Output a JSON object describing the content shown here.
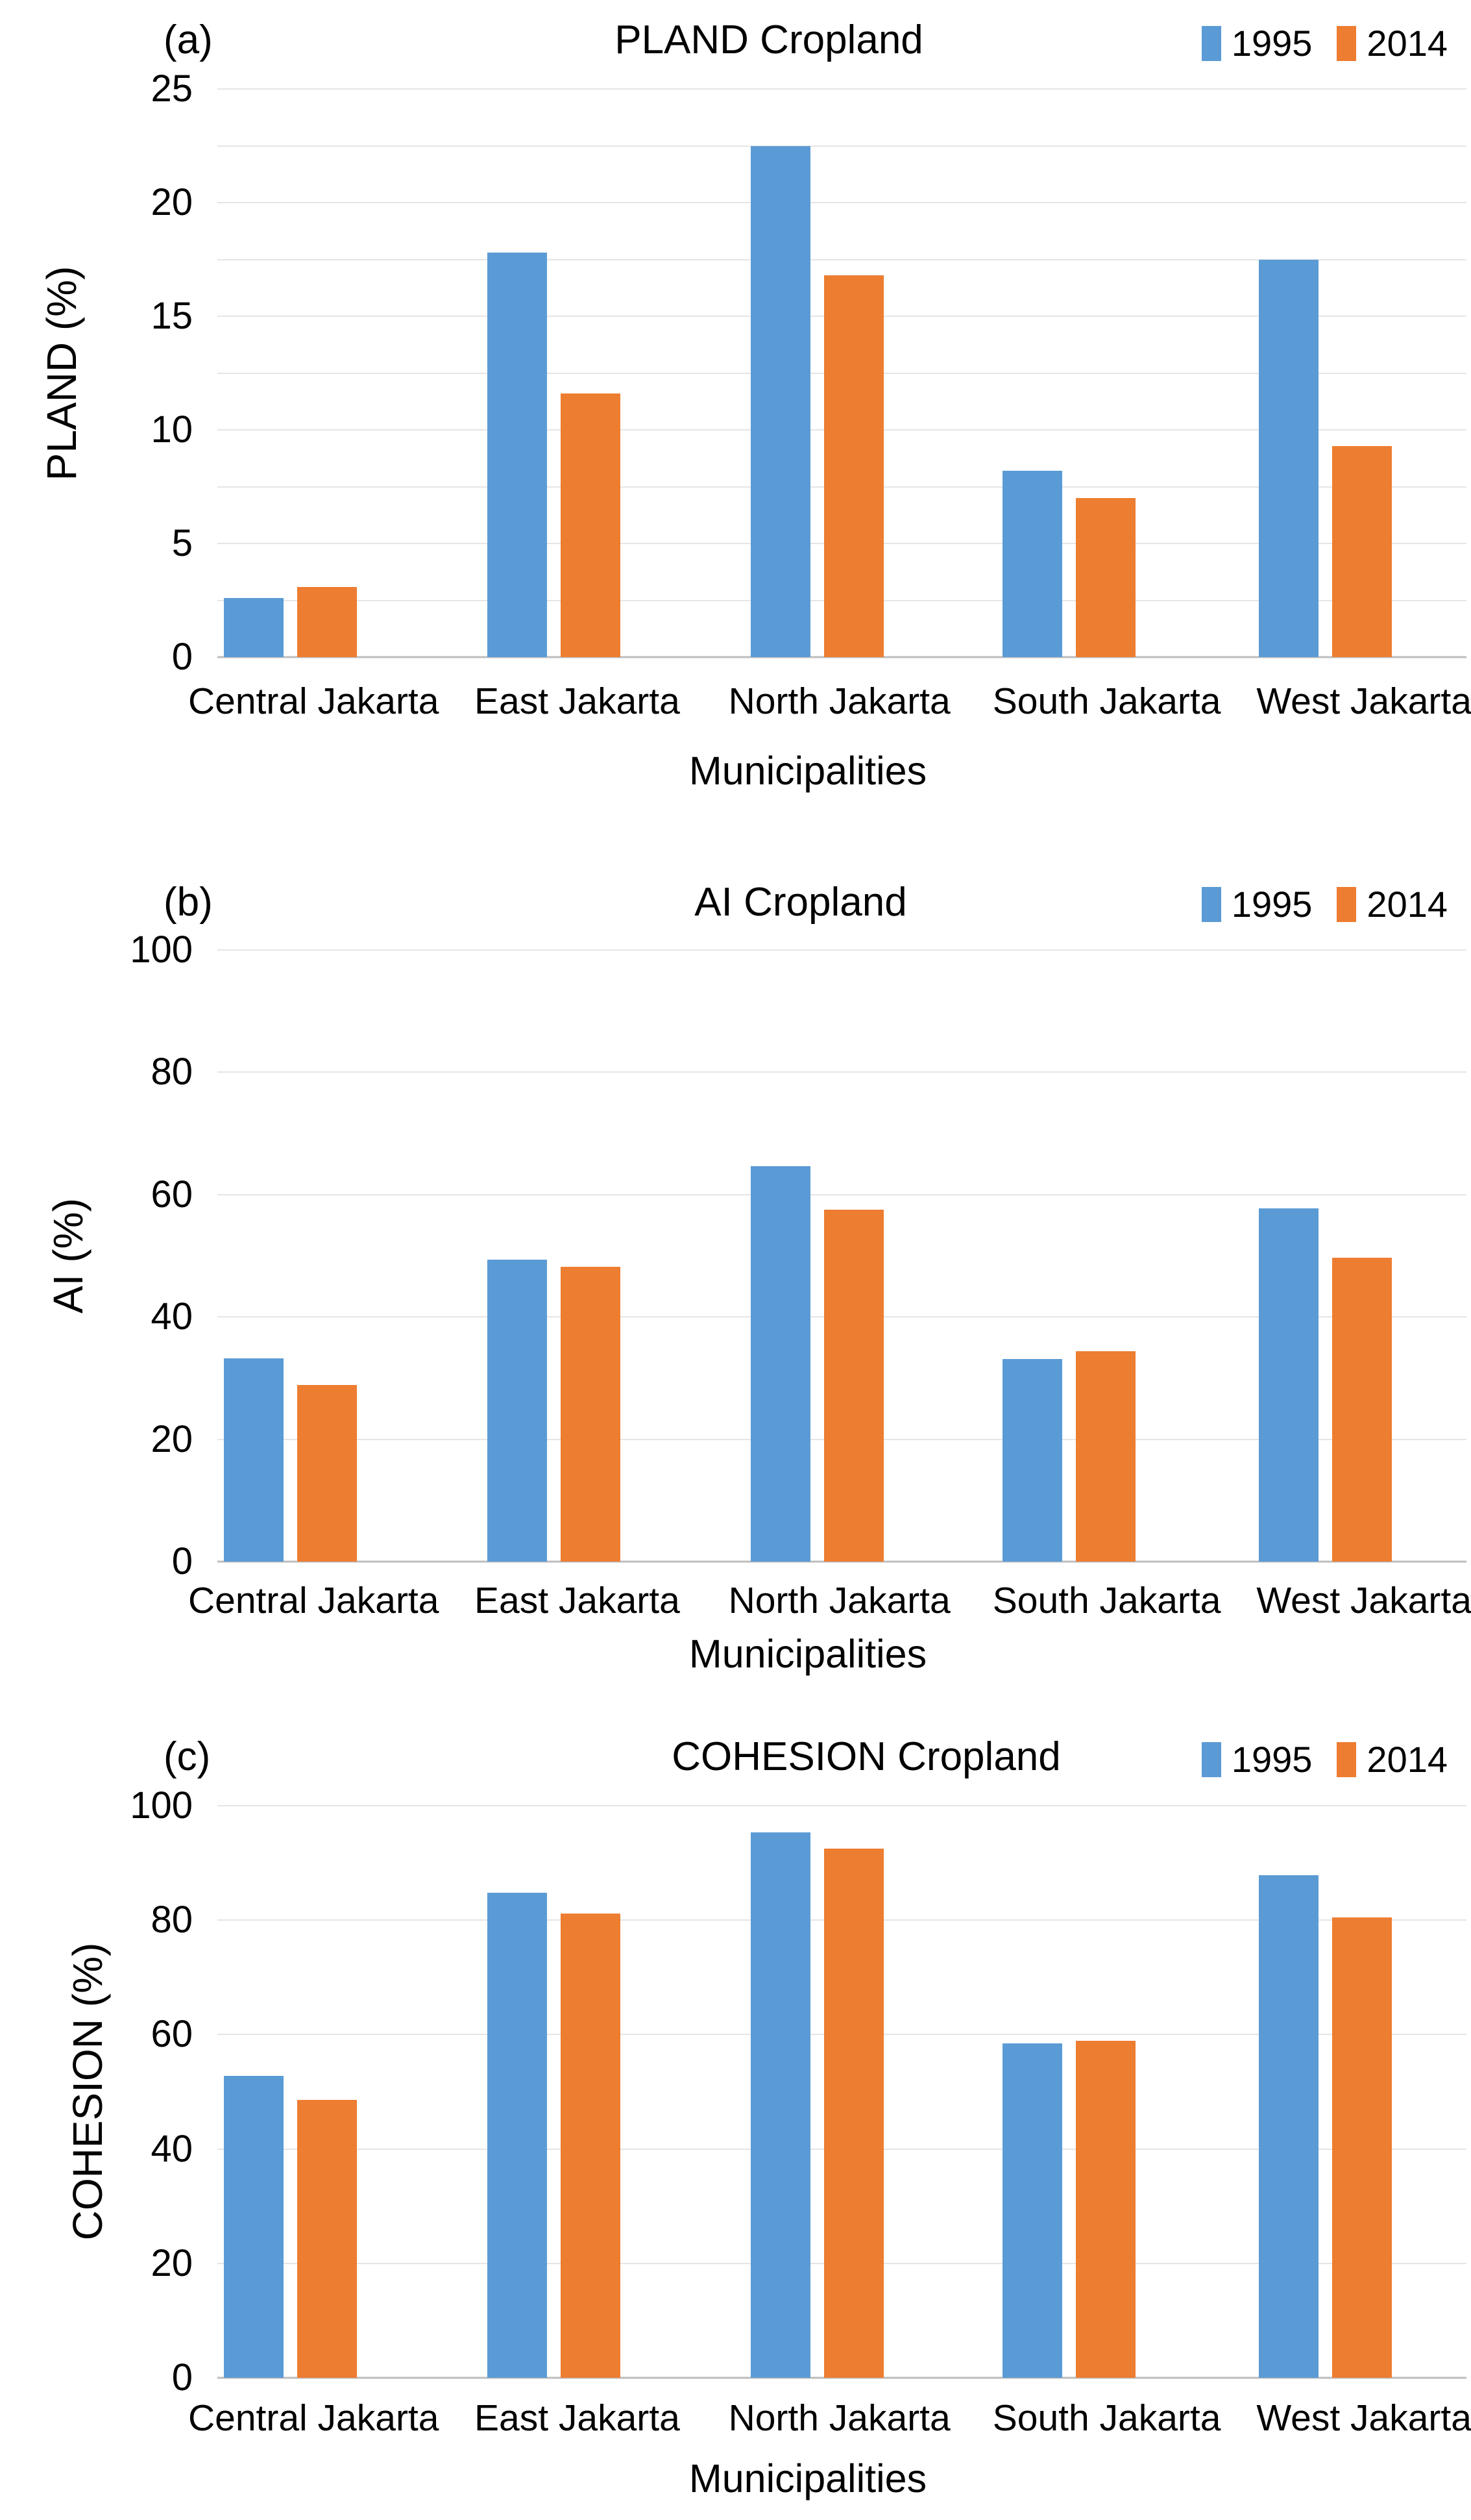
{
  "colors": {
    "series_1995": "#5B9BD5",
    "series_2014": "#ED7D31",
    "gridline": "#E5E5E5",
    "axis_line": "#BDBDBD",
    "text": "#000000",
    "background": "#FFFFFF"
  },
  "legend": {
    "items": [
      {
        "label": "1995",
        "color": "#5B9BD5"
      },
      {
        "label": "2014",
        "color": "#ED7D31"
      }
    ]
  },
  "chart_data": [
    {
      "type": "bar",
      "panel": "(a)",
      "title": "PLAND Cropland",
      "ylabel": "PLAND (%)",
      "xlabel": "Municipalities",
      "ylim": [
        0,
        25
      ],
      "yticks": [
        0,
        5,
        10,
        15,
        20,
        25
      ],
      "grid_step": 2.5,
      "grid": true,
      "legend_position": "top-right",
      "categories": [
        "Central Jakarta",
        "East Jakarta",
        "North Jakarta",
        "South Jakarta",
        "West Jakarta"
      ],
      "series": [
        {
          "name": "1995",
          "values": [
            2.6,
            17.8,
            22.5,
            8.2,
            17.5
          ]
        },
        {
          "name": "2014",
          "values": [
            3.1,
            11.6,
            16.8,
            7.0,
            9.3
          ]
        }
      ]
    },
    {
      "type": "bar",
      "panel": "(b)",
      "title": "AI Cropland",
      "ylabel": "AI (%)",
      "xlabel": "Municipalities",
      "ylim": [
        0,
        100
      ],
      "yticks": [
        0,
        20,
        40,
        60,
        80,
        100
      ],
      "grid_step": 20,
      "grid": true,
      "legend_position": "top-right",
      "categories": [
        "Central Jakarta",
        "East Jakarta",
        "North Jakarta",
        "South Jakarta",
        "West Jakarta"
      ],
      "series": [
        {
          "name": "1995",
          "values": [
            33.2,
            49.4,
            64.6,
            33.1,
            57.7
          ]
        },
        {
          "name": "2014",
          "values": [
            28.9,
            48.2,
            57.5,
            34.4,
            49.7
          ]
        }
      ]
    },
    {
      "type": "bar",
      "panel": "(c)",
      "title": "COHESION Cropland",
      "ylabel": "COHESION (%)",
      "xlabel": "Municipalities",
      "ylim": [
        0,
        100
      ],
      "yticks": [
        0,
        20,
        40,
        60,
        80,
        100
      ],
      "grid_step": 20,
      "grid": true,
      "legend_position": "top-right",
      "categories": [
        "Central Jakarta",
        "East Jakarta",
        "North Jakarta",
        "South Jakarta",
        "West Jakarta"
      ],
      "series": [
        {
          "name": "1995",
          "values": [
            52.8,
            84.8,
            95.3,
            58.5,
            87.9
          ]
        },
        {
          "name": "2014",
          "values": [
            48.6,
            81.2,
            92.5,
            58.9,
            80.5
          ]
        }
      ]
    }
  ]
}
